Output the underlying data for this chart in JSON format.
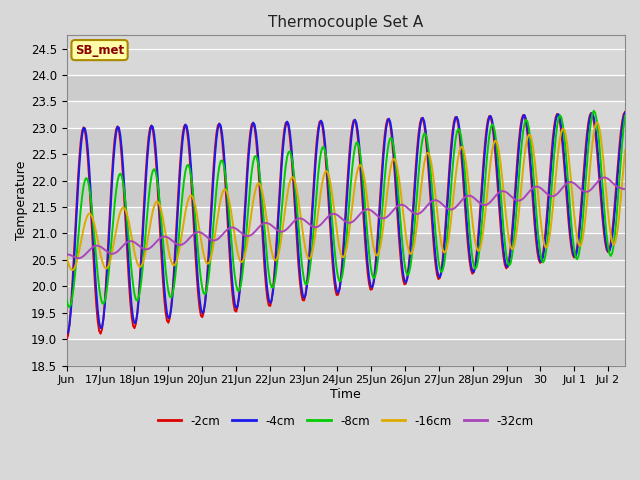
{
  "title": "Thermocouple Set A",
  "xlabel": "Time",
  "ylabel": "Temperature",
  "ylim": [
    18.5,
    24.75
  ],
  "xlim_days": [
    0,
    16.5
  ],
  "background_color": "#d8d8d8",
  "plot_bg_color": "#d8d8d8",
  "legend_label": "SB_met",
  "legend_text_color": "#8b0000",
  "legend_box_color": "#ffffaa",
  "series_colors": {
    "-2cm": "#dd0000",
    "-4cm": "#1a1aee",
    "-8cm": "#00cc00",
    "-16cm": "#ddaa00",
    "-32cm": "#aa44bb"
  },
  "series_order": [
    "-2cm",
    "-4cm",
    "-8cm",
    "-16cm",
    "-32cm"
  ],
  "x_tick_labels": [
    "Jun",
    "17Jun",
    "18Jun",
    "19Jun",
    "20Jun",
    "21Jun",
    "22Jun",
    "23Jun",
    "24Jun",
    "25Jun",
    "26Jun",
    "27Jun",
    "28Jun",
    "29Jun",
    "30",
    "Jul 1",
    "Jul 2"
  ],
  "x_tick_positions": [
    0,
    1,
    2,
    3,
    4,
    5,
    6,
    7,
    8,
    9,
    10,
    11,
    12,
    13,
    14,
    15,
    16
  ]
}
